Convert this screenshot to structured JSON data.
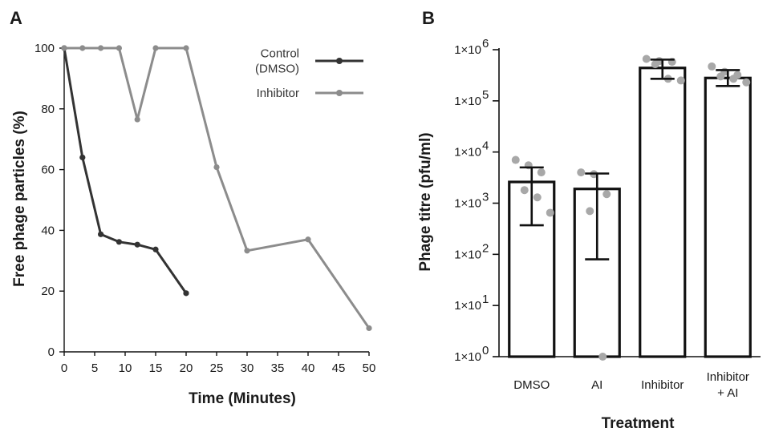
{
  "chart_data": [
    {
      "panel": "A",
      "type": "line",
      "xlabel": "Time (Minutes)",
      "ylabel": "Free phage particles (%)",
      "xlim": [
        0,
        50
      ],
      "ylim": [
        0,
        100
      ],
      "xticks": [
        "0",
        "5",
        "10",
        "15",
        "20",
        "25",
        "30",
        "35",
        "40",
        "45",
        "50"
      ],
      "yticks": [
        "0",
        "20",
        "40",
        "60",
        "80",
        "100"
      ],
      "legend_position": "top-right",
      "series": [
        {
          "name_lines": [
            "Control",
            "(DMSO)"
          ],
          "color": "#333333",
          "x": [
            0,
            3,
            6,
            9,
            12,
            15,
            20
          ],
          "y": [
            100,
            64,
            38.7,
            36.2,
            35.3,
            33.7,
            19.3
          ]
        },
        {
          "name_lines": [
            "Inhibitor"
          ],
          "color": "#8c8c8c",
          "x": [
            0,
            3,
            6,
            9,
            12,
            15,
            20,
            25,
            30,
            40,
            50
          ],
          "y": [
            100,
            100,
            100,
            100,
            76.5,
            100,
            100,
            60.8,
            33.3,
            37,
            7.8
          ]
        }
      ]
    },
    {
      "panel": "B",
      "type": "bar",
      "xlabel": "Treatment",
      "ylabel": "Phage titre (pfu/ml)",
      "yscale": "log",
      "ylim": [
        1,
        1000000
      ],
      "yticks": [
        {
          "base": "1×10",
          "exp": "0"
        },
        {
          "base": "1×10",
          "exp": "1"
        },
        {
          "base": "1×10",
          "exp": "2"
        },
        {
          "base": "1×10",
          "exp": "3"
        },
        {
          "base": "1×10",
          "exp": "4"
        },
        {
          "base": "1×10",
          "exp": "5"
        },
        {
          "base": "1×10",
          "exp": "6"
        }
      ],
      "categories": [
        [
          "DMSO"
        ],
        [
          "AI"
        ],
        [
          "Inhibitor"
        ],
        [
          "Inhibitor",
          "+ AI"
        ]
      ],
      "values": [
        2600,
        1900,
        440000,
        280000
      ],
      "error_low": [
        370,
        80,
        270000,
        195000
      ],
      "error_high": [
        5000,
        3800,
        640000,
        400000
      ],
      "points": [
        [
          7000,
          5500,
          4000,
          1800,
          1300,
          650
        ],
        [
          4000,
          3700,
          1500,
          700,
          1
        ],
        [
          660000,
          600000,
          580000,
          520000,
          270000,
          250000
        ],
        [
          470000,
          370000,
          320000,
          300000,
          270000,
          230000
        ]
      ],
      "bar_color": "#ffffff",
      "bar_edge_color": "#111111",
      "point_color": "#a8a8a8"
    }
  ],
  "panel_labels": [
    "A",
    "B"
  ]
}
